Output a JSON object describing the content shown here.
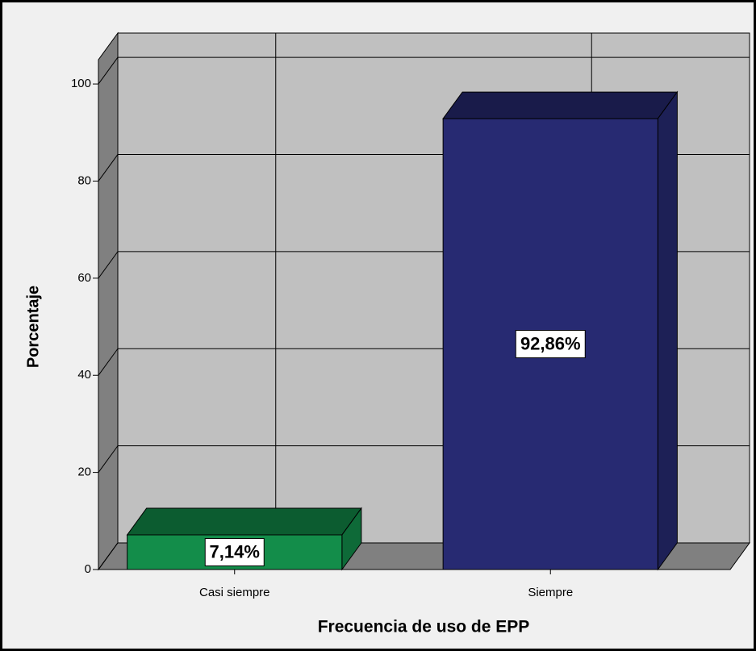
{
  "chart_data": {
    "type": "bar3d",
    "categories": [
      "Casi siempre",
      "Siempre"
    ],
    "values": [
      7.14,
      92.86
    ],
    "value_labels": [
      "7,14%",
      "92,86%"
    ],
    "colors": [
      "#138d4a",
      "#272a72"
    ],
    "x_label": "Frecuencia de uso de EPP",
    "y_label": "Porcentaje",
    "ylim": [
      0,
      105
    ],
    "yticks": [
      0,
      20,
      40,
      60,
      80,
      100
    ],
    "grid": true
  }
}
